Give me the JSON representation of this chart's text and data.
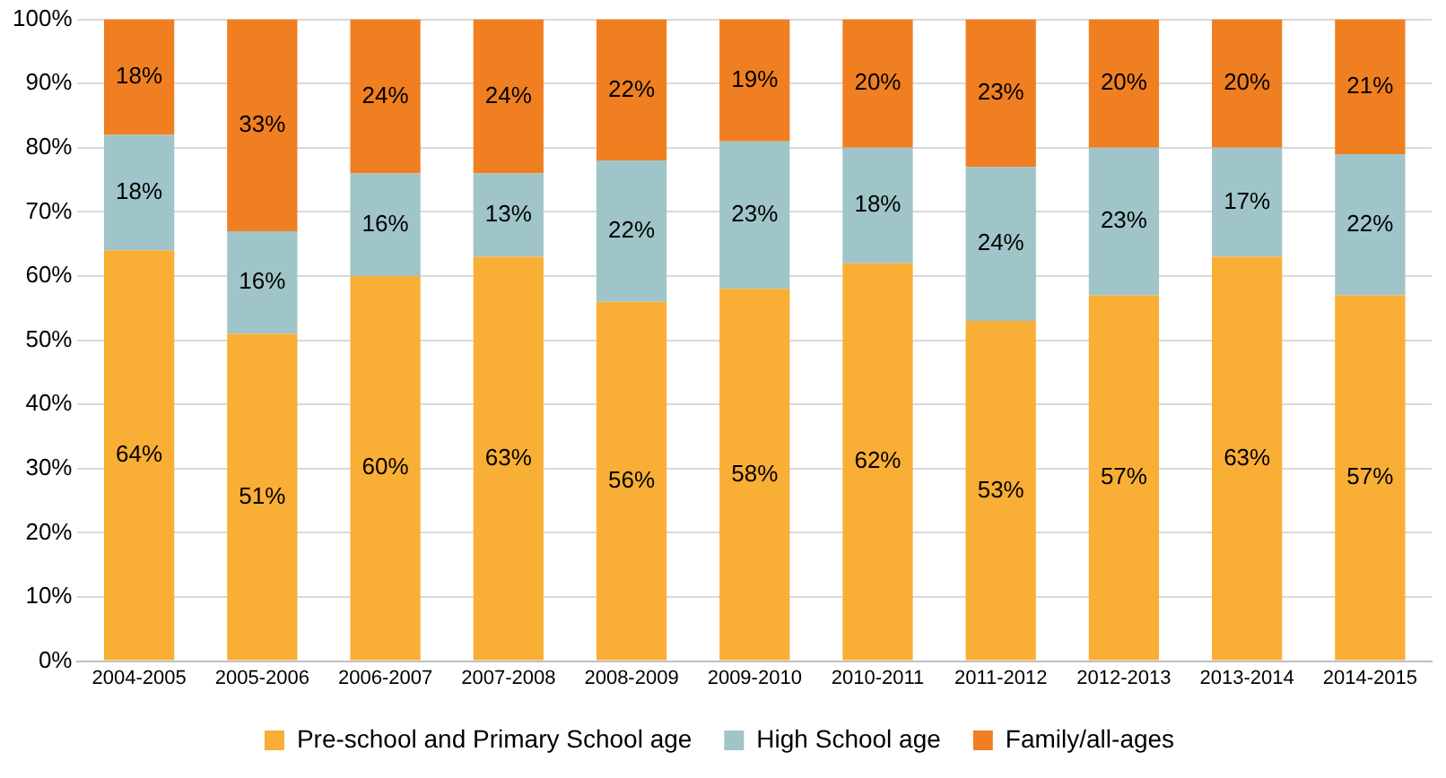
{
  "chart_data": {
    "type": "bar",
    "stacked": true,
    "categories": [
      "2004-2005",
      "2005-2006",
      "2006-2007",
      "2007-2008",
      "2008-2009",
      "2009-2010",
      "2010-2011",
      "2011-2012",
      "2012-2013",
      "2013-2014",
      "2014-2015"
    ],
    "series": [
      {
        "name": "Pre-school and Primary School age",
        "color": "#f9ae35",
        "values": [
          64,
          51,
          60,
          63,
          56,
          58,
          62,
          53,
          57,
          63,
          57
        ],
        "value_labels": [
          "64%",
          "51%",
          "60%",
          "63%",
          "56%",
          "58%",
          "62%",
          "53%",
          "57%",
          "63%",
          "57%"
        ]
      },
      {
        "name": "High School age",
        "color": "#9fc5c8",
        "values": [
          18,
          16,
          16,
          13,
          22,
          23,
          18,
          24,
          23,
          17,
          22
        ],
        "value_labels": [
          "18%",
          "16%",
          "16%",
          "13%",
          "22%",
          "23%",
          "18%",
          "24%",
          "23%",
          "17%",
          "22%"
        ]
      },
      {
        "name": "Family/all-ages",
        "color": "#f07f22",
        "values": [
          18,
          33,
          24,
          24,
          22,
          19,
          20,
          23,
          20,
          20,
          21
        ],
        "value_labels": [
          "18%",
          "33%",
          "24%",
          "24%",
          "22%",
          "19%",
          "20%",
          "23%",
          "20%",
          "20%",
          "21%"
        ]
      }
    ],
    "ylim": [
      0,
      100
    ],
    "yticks": [
      {
        "value": 0,
        "label": "0%"
      },
      {
        "value": 10,
        "label": "10%"
      },
      {
        "value": 20,
        "label": "20%"
      },
      {
        "value": 30,
        "label": "30%"
      },
      {
        "value": 40,
        "label": "40%"
      },
      {
        "value": 50,
        "label": "50%"
      },
      {
        "value": 60,
        "label": "60%"
      },
      {
        "value": 70,
        "label": "70%"
      },
      {
        "value": 80,
        "label": "80%"
      },
      {
        "value": 90,
        "label": "90%"
      },
      {
        "value": 100,
        "label": "100%"
      }
    ],
    "grid": "y",
    "legend": "bottom"
  }
}
